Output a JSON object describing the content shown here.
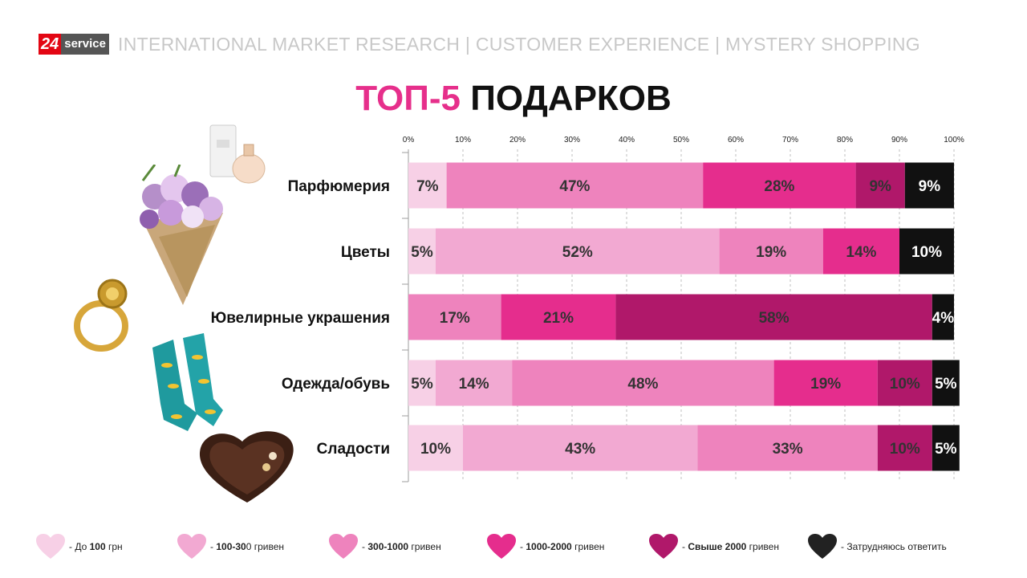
{
  "header": {
    "logo_number": "24",
    "logo_word": "service",
    "tagline": "INTERNATIONAL  MARKET RESEARCH  | CUSTOMER EXPERIENCE  |  MYSTERY SHOPPING"
  },
  "title": {
    "accent": "ТОП-5",
    "rest": " ПОДАРКОВ"
  },
  "chart_data": {
    "type": "bar",
    "orientation": "horizontal-stacked-100",
    "title": "ТОП-5 ПОДАРКОВ",
    "categories": [
      "Парфюмерия",
      "Цветы",
      "Ювелирные украшения",
      "Одежда/обувь",
      "Сладости"
    ],
    "series": [
      {
        "name": "До 100 грн",
        "color": "#f7d0e6",
        "values": [
          7,
          5,
          0,
          5,
          10
        ]
      },
      {
        "name": "100-300 гривен",
        "color": "#f2a9d2",
        "values": [
          0,
          52,
          0,
          14,
          43
        ]
      },
      {
        "name": "300-1000 гривен",
        "color": "#ee83bd",
        "values": [
          47,
          19,
          17,
          48,
          33
        ]
      },
      {
        "name": "1000-2000 гривен",
        "color": "#e52d8d",
        "values": [
          28,
          14,
          21,
          19,
          0
        ]
      },
      {
        "name": "Свыше 2000 гривен",
        "color": "#b0186a",
        "values": [
          9,
          0,
          58,
          10,
          10
        ]
      },
      {
        "name": "Затрудняюсь ответить",
        "color": "#111111",
        "values": [
          9,
          10,
          4,
          5,
          5
        ]
      }
    ],
    "xlim": [
      0,
      100
    ],
    "x_ticks": [
      "0%",
      "10%",
      "20%",
      "30%",
      "40%",
      "50%",
      "60%",
      "70%",
      "80%",
      "90%",
      "100%"
    ],
    "axis_position": "top",
    "data_label_suffix": "%"
  },
  "legend": [
    {
      "pre": "- До ",
      "bold": "100",
      "post": " грн",
      "color": "#f7d0e6"
    },
    {
      "pre": "- ",
      "bold": "100-30",
      "post": "0  гривен",
      "color": "#f2a9d2"
    },
    {
      "pre": "- ",
      "bold": "300-1000",
      "post": "  гривен",
      "color": "#ee83bd"
    },
    {
      "pre": "- ",
      "bold": "1000-2000",
      "post": "  гривен",
      "color": "#e52d8d"
    },
    {
      "pre": "- ",
      "bold": "Свыше 2000",
      "post": "  гривен",
      "color": "#b0186a"
    },
    {
      "pre": "- Затрудняюсь ответить",
      "bold": "",
      "post": "",
      "color": "#222222"
    }
  ],
  "images": [
    "perfume-bottle",
    "flower-bouquet",
    "gold-ring",
    "socks",
    "chocolate-box"
  ]
}
